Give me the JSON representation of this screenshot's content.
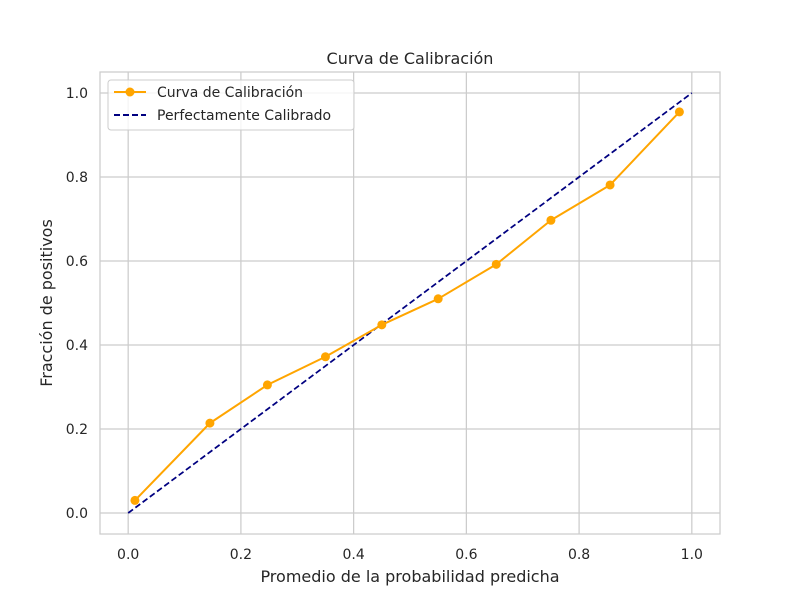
{
  "chart_data": {
    "type": "line",
    "title": "Curva de Calibración",
    "xlabel": "Promedio de la probabilidad predicha",
    "ylabel": "Fracción de positivos",
    "xlim": [
      -0.05,
      1.05
    ],
    "ylim": [
      -0.05,
      1.05
    ],
    "xticks": [
      0.0,
      0.2,
      0.4,
      0.6,
      0.8,
      1.0
    ],
    "yticks": [
      0.0,
      0.2,
      0.4,
      0.6,
      0.8,
      1.0
    ],
    "xtick_labels": [
      "0.0",
      "0.2",
      "0.4",
      "0.6",
      "0.8",
      "1.0"
    ],
    "ytick_labels": [
      "0.0",
      "0.2",
      "0.4",
      "0.6",
      "0.8",
      "1.0"
    ],
    "grid": true,
    "legend_position": "top-left",
    "series": [
      {
        "name": "Curva de Calibración",
        "style": "solid-with-markers",
        "color": "#FFA500",
        "x": [
          0.012,
          0.145,
          0.247,
          0.35,
          0.45,
          0.55,
          0.653,
          0.75,
          0.855,
          0.978
        ],
        "y": [
          0.03,
          0.214,
          0.305,
          0.372,
          0.448,
          0.51,
          0.592,
          0.697,
          0.781,
          0.955
        ]
      },
      {
        "name": "Perfectamente Calibrado",
        "style": "dashed",
        "color": "#000080",
        "x": [
          0.0,
          1.0
        ],
        "y": [
          0.0,
          1.0
        ]
      }
    ]
  }
}
